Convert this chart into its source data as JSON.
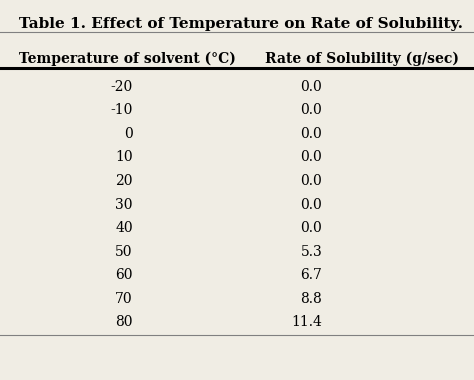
{
  "title": "Table 1. Effect of Temperature on Rate of Solubility.",
  "col1_header": "Temperature of solvent (°C)",
  "col2_header": "Rate of Solubility (g/sec)",
  "temperatures": [
    "-20",
    "-10",
    "0",
    "10",
    "20",
    "30",
    "40",
    "50",
    "60",
    "70",
    "80"
  ],
  "rates": [
    "0.0",
    "0.0",
    "0.0",
    "0.0",
    "0.0",
    "0.0",
    "0.0",
    "5.3",
    "6.7",
    "8.8",
    "11.4"
  ],
  "bg_color": "#f0ede4",
  "text_color": "#000000",
  "title_fontsize": 11,
  "header_fontsize": 10,
  "data_fontsize": 10
}
